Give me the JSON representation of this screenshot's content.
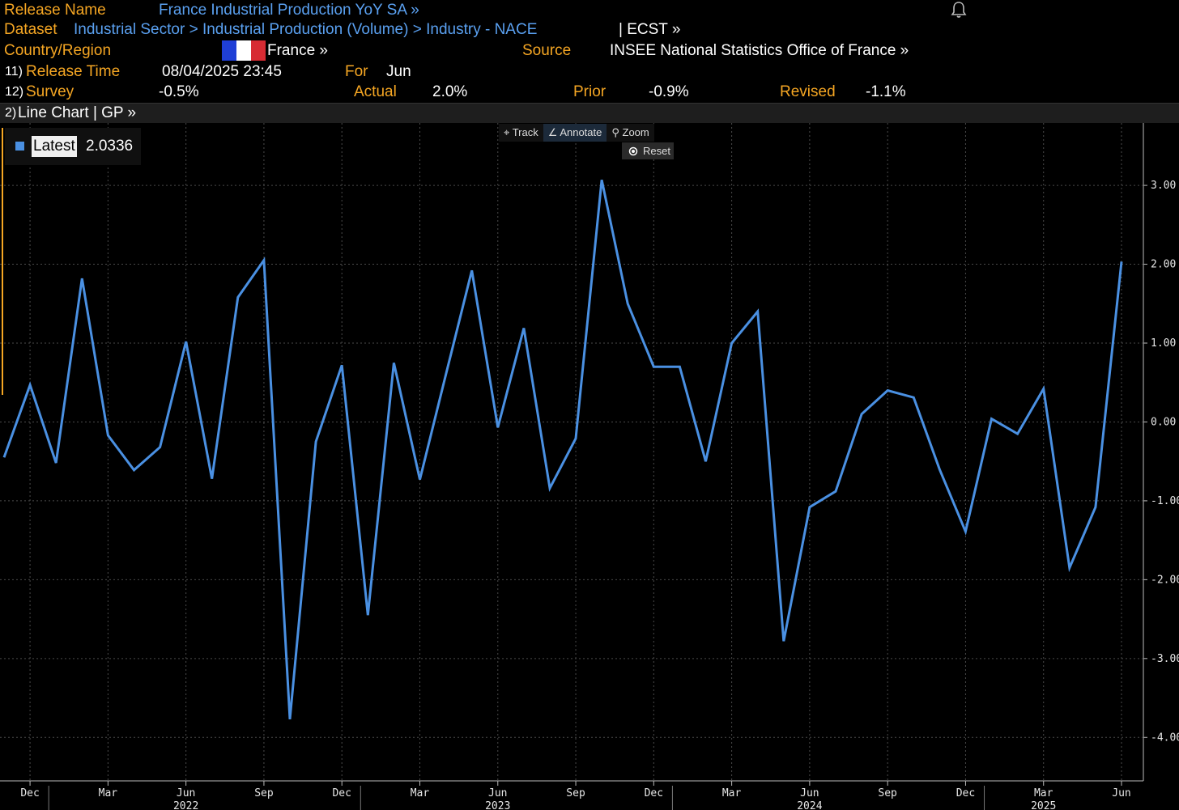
{
  "header": {
    "release_name_label": "Release Name",
    "release_name": "France Industrial Production YoY SA »",
    "dataset_label": "Dataset",
    "dataset_path": "Industrial Sector > Industrial Production (Volume) > Industry - NACE",
    "dataset_suffix": "| ECST »",
    "country_label": "Country/Region",
    "country": "France »",
    "source_label": "Source",
    "source": "INSEE National Statistics Office of France »",
    "release_time_num": "11)",
    "release_time_label": "Release Time",
    "release_time": "08/04/2025 23:45",
    "for_label": "For",
    "for_value": "Jun",
    "survey_num": "12)",
    "survey_label": "Survey",
    "survey": "-0.5%",
    "actual_label": "Actual",
    "actual": "2.0%",
    "prior_label": "Prior",
    "prior": "-0.9%",
    "revised_label": "Revised",
    "revised": "-1.1%",
    "flag_colors": [
      "#1f3fd6",
      "#ffffff",
      "#d72b33"
    ],
    "bell_icon": "bell-icon"
  },
  "chart_bar": {
    "num": "2)",
    "label": "Line Chart | GP »"
  },
  "toolbar": {
    "track": "Track",
    "annotate": "Annotate",
    "zoom": "Zoom",
    "reset": "Reset"
  },
  "legend": {
    "label": "Latest",
    "value": "2.0336"
  },
  "chart_data": {
    "type": "line",
    "series": [
      {
        "name": "Latest",
        "color": "#4a90e2",
        "values": [
          -0.45,
          0.47,
          -0.52,
          1.82,
          -0.17,
          -0.61,
          -0.32,
          1.02,
          -0.72,
          1.58,
          2.05,
          -3.77,
          -0.25,
          0.72,
          -2.45,
          0.75,
          -0.73,
          0.6,
          1.92,
          -0.07,
          1.19,
          -0.84,
          -0.21,
          3.07,
          1.5,
          0.7,
          0.7,
          -0.5,
          1.0,
          1.4,
          -2.78,
          -1.08,
          -0.88,
          0.1,
          0.4,
          0.31,
          -0.6,
          -1.39,
          0.04,
          -0.15,
          0.42,
          -1.85,
          -1.08,
          2.0336
        ]
      }
    ],
    "x_start": "2021-11",
    "x_end": "2025-06",
    "x_ticks": [
      {
        "label": "Dec",
        "date": "2021-12"
      },
      {
        "label": "Mar",
        "date": "2022-03"
      },
      {
        "label": "Jun",
        "date": "2022-06"
      },
      {
        "label": "Sep",
        "date": "2022-09"
      },
      {
        "label": "Dec",
        "date": "2022-12"
      },
      {
        "label": "Mar",
        "date": "2023-03"
      },
      {
        "label": "Jun",
        "date": "2023-06"
      },
      {
        "label": "Sep",
        "date": "2023-09"
      },
      {
        "label": "Dec",
        "date": "2023-12"
      },
      {
        "label": "Mar",
        "date": "2024-03"
      },
      {
        "label": "Jun",
        "date": "2024-06"
      },
      {
        "label": "Sep",
        "date": "2024-09"
      },
      {
        "label": "Dec",
        "date": "2024-12"
      },
      {
        "label": "Mar",
        "date": "2025-03"
      },
      {
        "label": "Jun",
        "date": "2025-06"
      }
    ],
    "year_labels": [
      {
        "label": "2022",
        "date": "2022-06"
      },
      {
        "label": "2023",
        "date": "2023-06"
      },
      {
        "label": "2024",
        "date": "2024-06"
      },
      {
        "label": "2025",
        "date": "2025-03"
      }
    ],
    "y_ticks": [
      "3.00",
      "2.00",
      "1.00",
      "0.00",
      "-1.00",
      "-2.00",
      "-3.00",
      "-4.00"
    ],
    "y_tick_values": [
      3,
      2,
      1,
      0,
      -1,
      -2,
      -3,
      -4
    ],
    "ylim": [
      -4.5,
      3.75
    ],
    "grid": true,
    "legend_position": "top-left"
  }
}
